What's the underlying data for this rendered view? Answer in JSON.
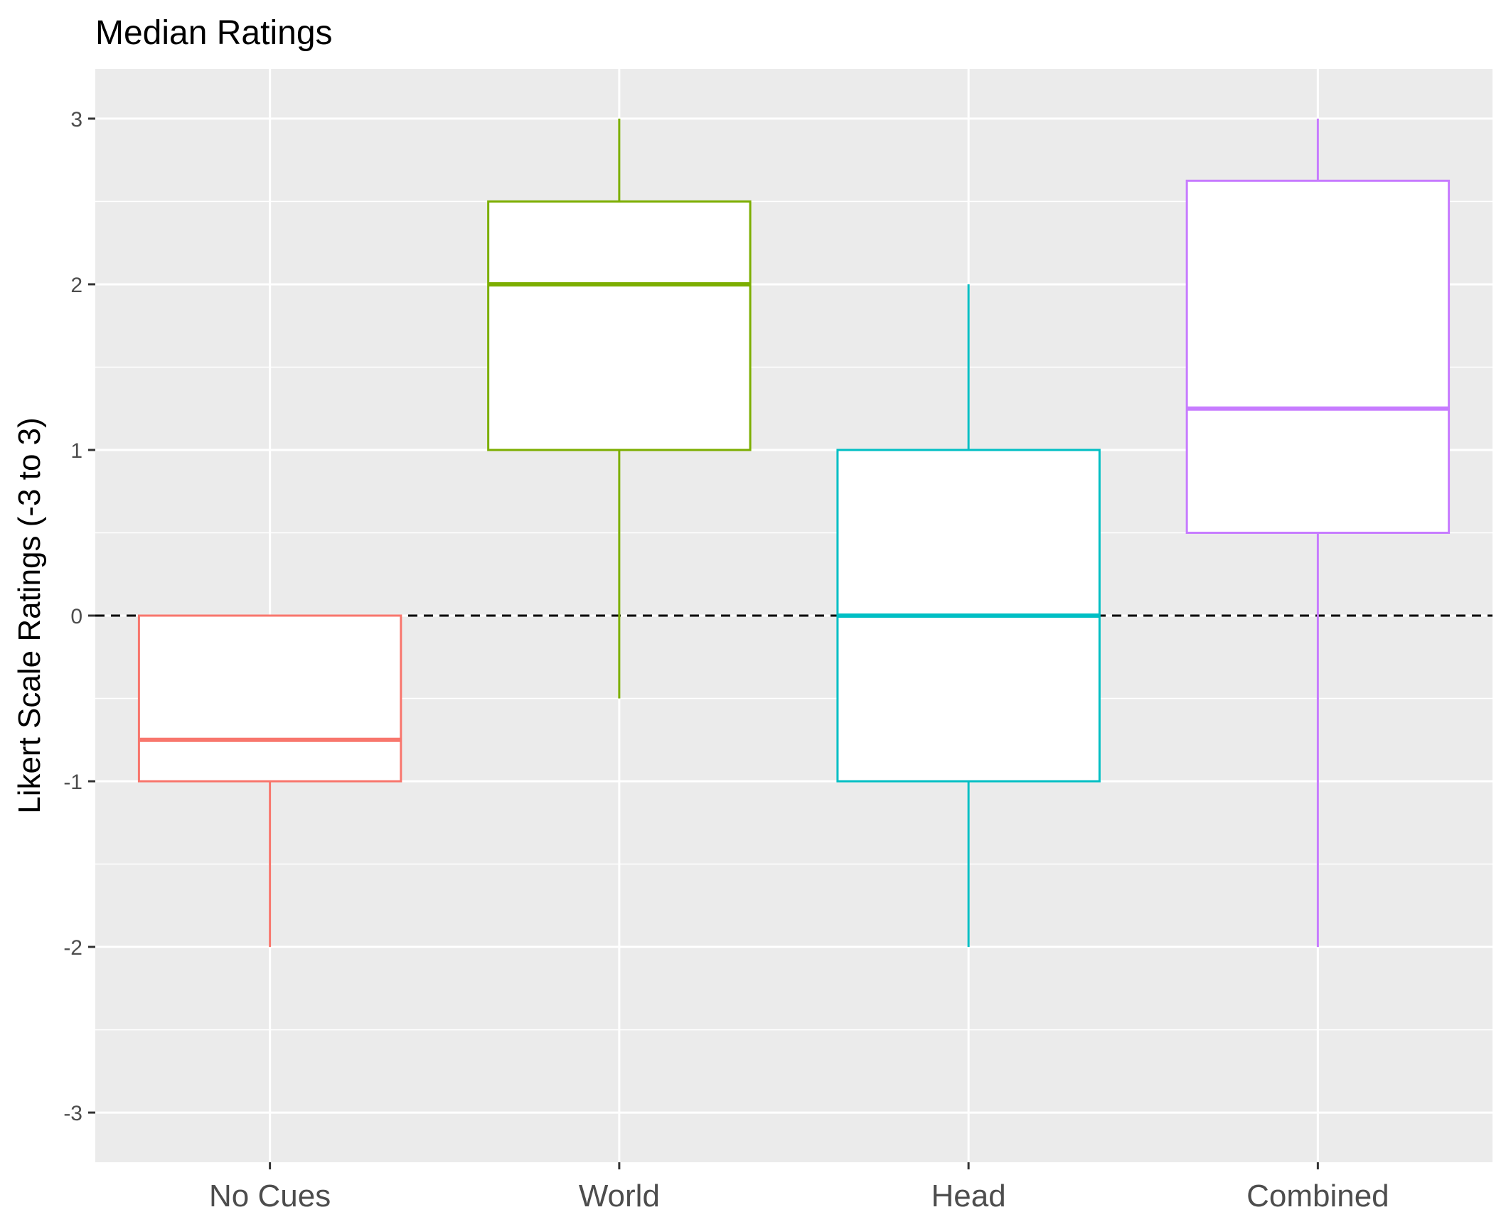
{
  "chart_data": {
    "type": "boxplot",
    "title": "Median Ratings",
    "xlabel": "",
    "ylabel": "Likert Scale Ratings (-3 to 3)",
    "ylim": [
      -3.3,
      3.3
    ],
    "yticks": [
      "3",
      "2",
      "1",
      "0",
      "-1",
      "-2",
      "-3"
    ],
    "ytick_values": [
      3,
      2,
      1,
      0,
      -1,
      -2,
      -3
    ],
    "reference_line": {
      "y": 0,
      "style": "dashed",
      "color": "#000000"
    },
    "grid": true,
    "background": "#ebebeb",
    "categories": [
      "No Cues",
      "World",
      "Head",
      "Combined"
    ],
    "series": [
      {
        "category": "No Cues",
        "color": "#f8766d",
        "whisker_low": -2,
        "q1": -1,
        "median": -0.75,
        "q3": 0,
        "whisker_high": 0
      },
      {
        "category": "World",
        "color": "#7cae00",
        "whisker_low": -0.5,
        "q1": 1,
        "median": 2,
        "q3": 2.5,
        "whisker_high": 3
      },
      {
        "category": "Head",
        "color": "#00bfc4",
        "whisker_low": -2,
        "q1": -1,
        "median": 0,
        "q3": 1,
        "whisker_high": 2
      },
      {
        "category": "Combined",
        "color": "#c77cff",
        "whisker_low": -2,
        "q1": 0.5,
        "median": 1.25,
        "q3": 2.625,
        "whisker_high": 3
      }
    ]
  }
}
